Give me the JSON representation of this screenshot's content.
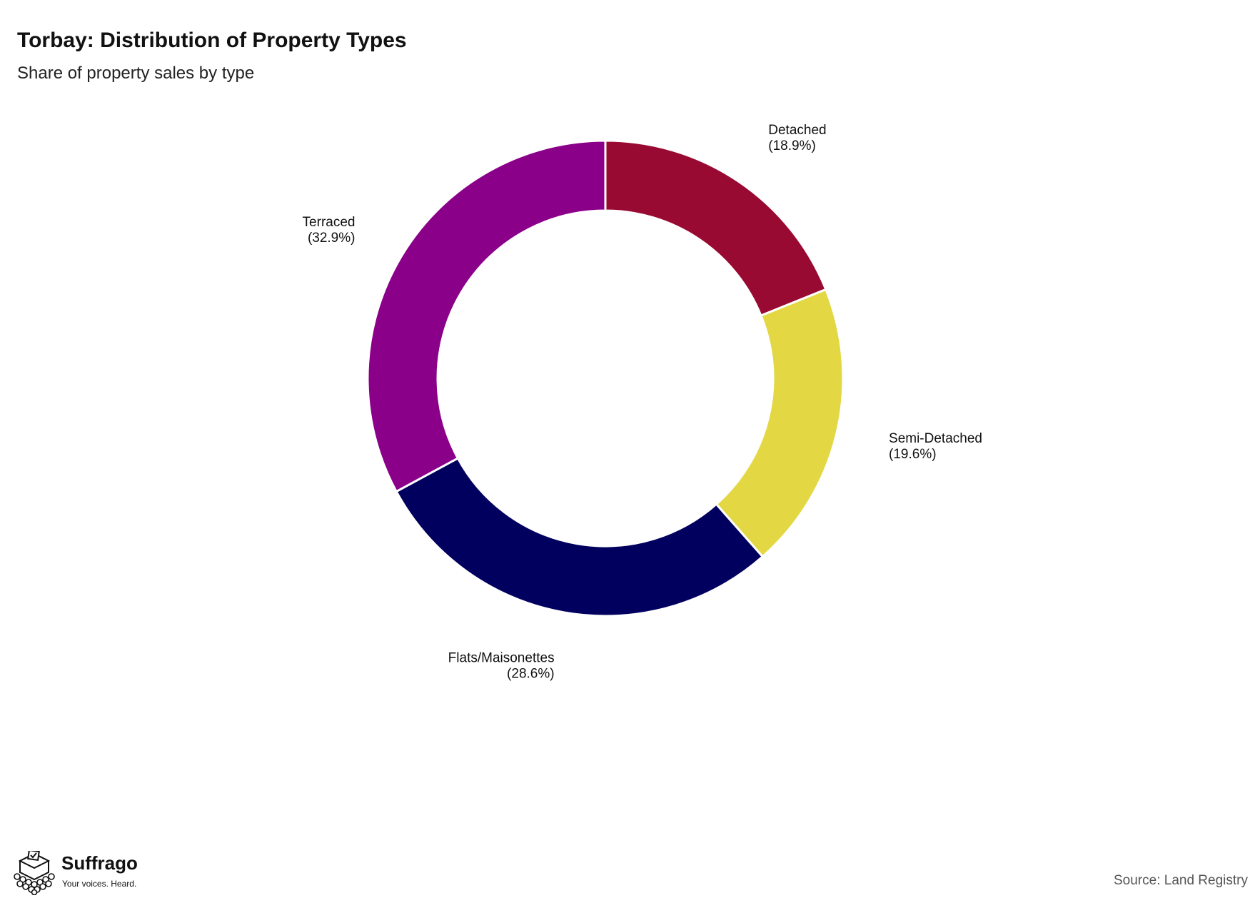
{
  "header": {
    "title": "Torbay: Distribution of Property Types",
    "subtitle": "Share of property sales by type"
  },
  "chart_data": {
    "type": "pie",
    "variant": "donut",
    "title": "Torbay: Distribution of Property Types",
    "subtitle": "Share of property sales by type",
    "categories": [
      "Detached",
      "Semi-Detached",
      "Flats/Maisonettes",
      "Terraced"
    ],
    "values": [
      18.9,
      19.6,
      28.6,
      32.9
    ],
    "labels": [
      "(18.9%)",
      "(19.6%)",
      "(28.6%)",
      "(32.9%)"
    ],
    "colors": [
      "#990A33",
      "#E3D844",
      "#02005E",
      "#8B0089"
    ],
    "unit": "%",
    "legend": "none (direct labels)"
  },
  "branding": {
    "name": "Suffrago",
    "tagline": "Your voices. Heard."
  },
  "footer": {
    "source": "Source: Land Registry"
  },
  "icons": {
    "logo": "ballot-box-icon"
  }
}
